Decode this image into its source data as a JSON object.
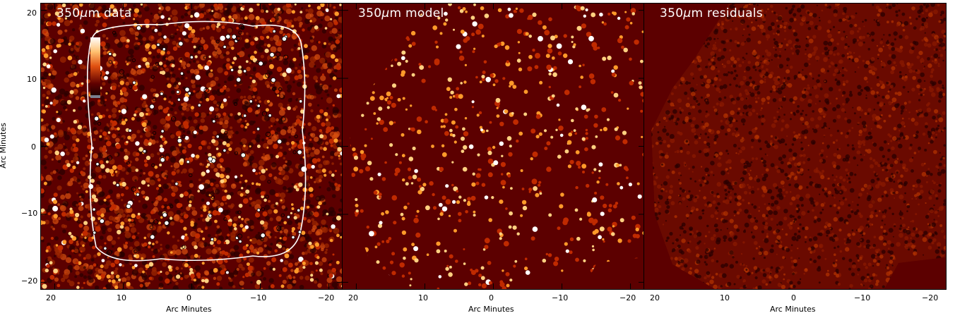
{
  "panels": [
    {
      "id": "data",
      "title_pre": "350",
      "title_mu": "μ",
      "title_post": "m data"
    },
    {
      "id": "model",
      "title_pre": "350",
      "title_mu": "μ",
      "title_post": "m model"
    },
    {
      "id": "residuals",
      "title_pre": "350",
      "title_mu": "μ",
      "title_post": "m residuals"
    }
  ],
  "axes": {
    "xlabel": "Arc Minutes",
    "ylabel": "Arc Minutes",
    "x_range": [
      22,
      -22
    ],
    "y_range": [
      -21,
      21
    ],
    "x_ticks": [
      "20",
      "10",
      "0",
      "−10",
      "−20"
    ],
    "y_ticks": [
      "20",
      "10",
      "0",
      "−10",
      "−20"
    ]
  },
  "colors": {
    "background_map": "#5c0000",
    "hot_high": "#ffffff",
    "hot_mid": "#ff9a2a",
    "hot_low": "#c02a00",
    "contour": "#ffffff",
    "axis": "#000000"
  }
}
